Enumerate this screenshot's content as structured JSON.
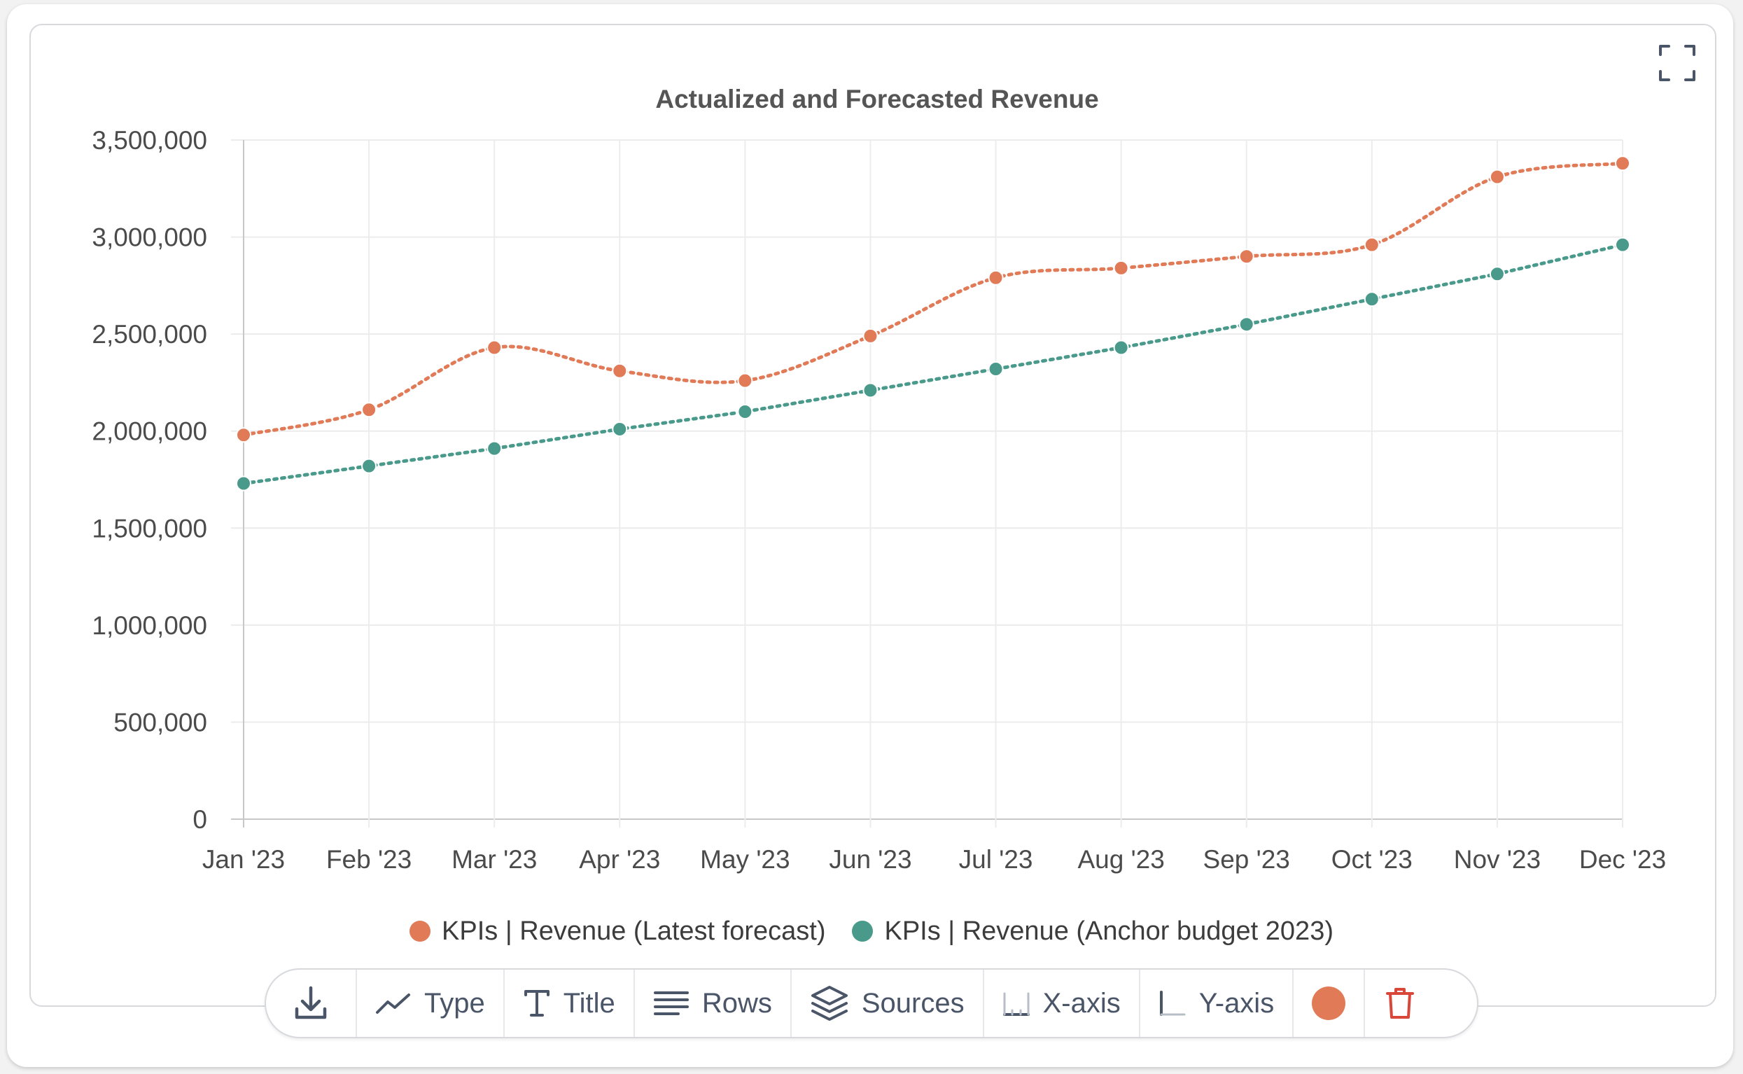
{
  "chart_data": {
    "type": "line",
    "title": "Actualized and Forecasted Revenue",
    "xlabel": "",
    "ylabel": "",
    "categories": [
      "Jan '23",
      "Feb '23",
      "Mar '23",
      "Apr '23",
      "May '23",
      "Jun '23",
      "Jul '23",
      "Aug '23",
      "Sep '23",
      "Oct '23",
      "Nov '23",
      "Dec '23"
    ],
    "ylim": [
      0,
      3500000
    ],
    "yticks": [
      0,
      500000,
      1000000,
      1500000,
      2000000,
      2500000,
      3000000,
      3500000
    ],
    "ytick_labels": [
      "0",
      "500,000",
      "1,000,000",
      "1,500,000",
      "2,000,000",
      "2,500,000",
      "3,000,000",
      "3,500,000"
    ],
    "grid": true,
    "legend_position": "bottom-center",
    "line_style": "dotted",
    "series": [
      {
        "name": "KPIs | Revenue (Latest forecast)",
        "color": "#e07a57",
        "smooth": true,
        "values": [
          1980000,
          2110000,
          2430000,
          2310000,
          2260000,
          2490000,
          2790000,
          2840000,
          2900000,
          2960000,
          3310000,
          3380000
        ]
      },
      {
        "name": "KPIs | Revenue (Anchor budget 2023)",
        "color": "#4a9a8c",
        "smooth": false,
        "values": [
          1730000,
          1820000,
          1910000,
          2010000,
          2100000,
          2210000,
          2320000,
          2430000,
          2550000,
          2680000,
          2810000,
          2960000
        ]
      }
    ]
  },
  "toolbar": {
    "download_icon": "download-icon",
    "type_label": "Type",
    "title_label": "Title",
    "rows_label": "Rows",
    "sources_label": "Sources",
    "xaxis_label": "X-axis",
    "yaxis_label": "Y-axis",
    "color_swatch": "#e07a57",
    "delete_icon": "trash-icon"
  },
  "fullscreen_icon": "expand-icon"
}
